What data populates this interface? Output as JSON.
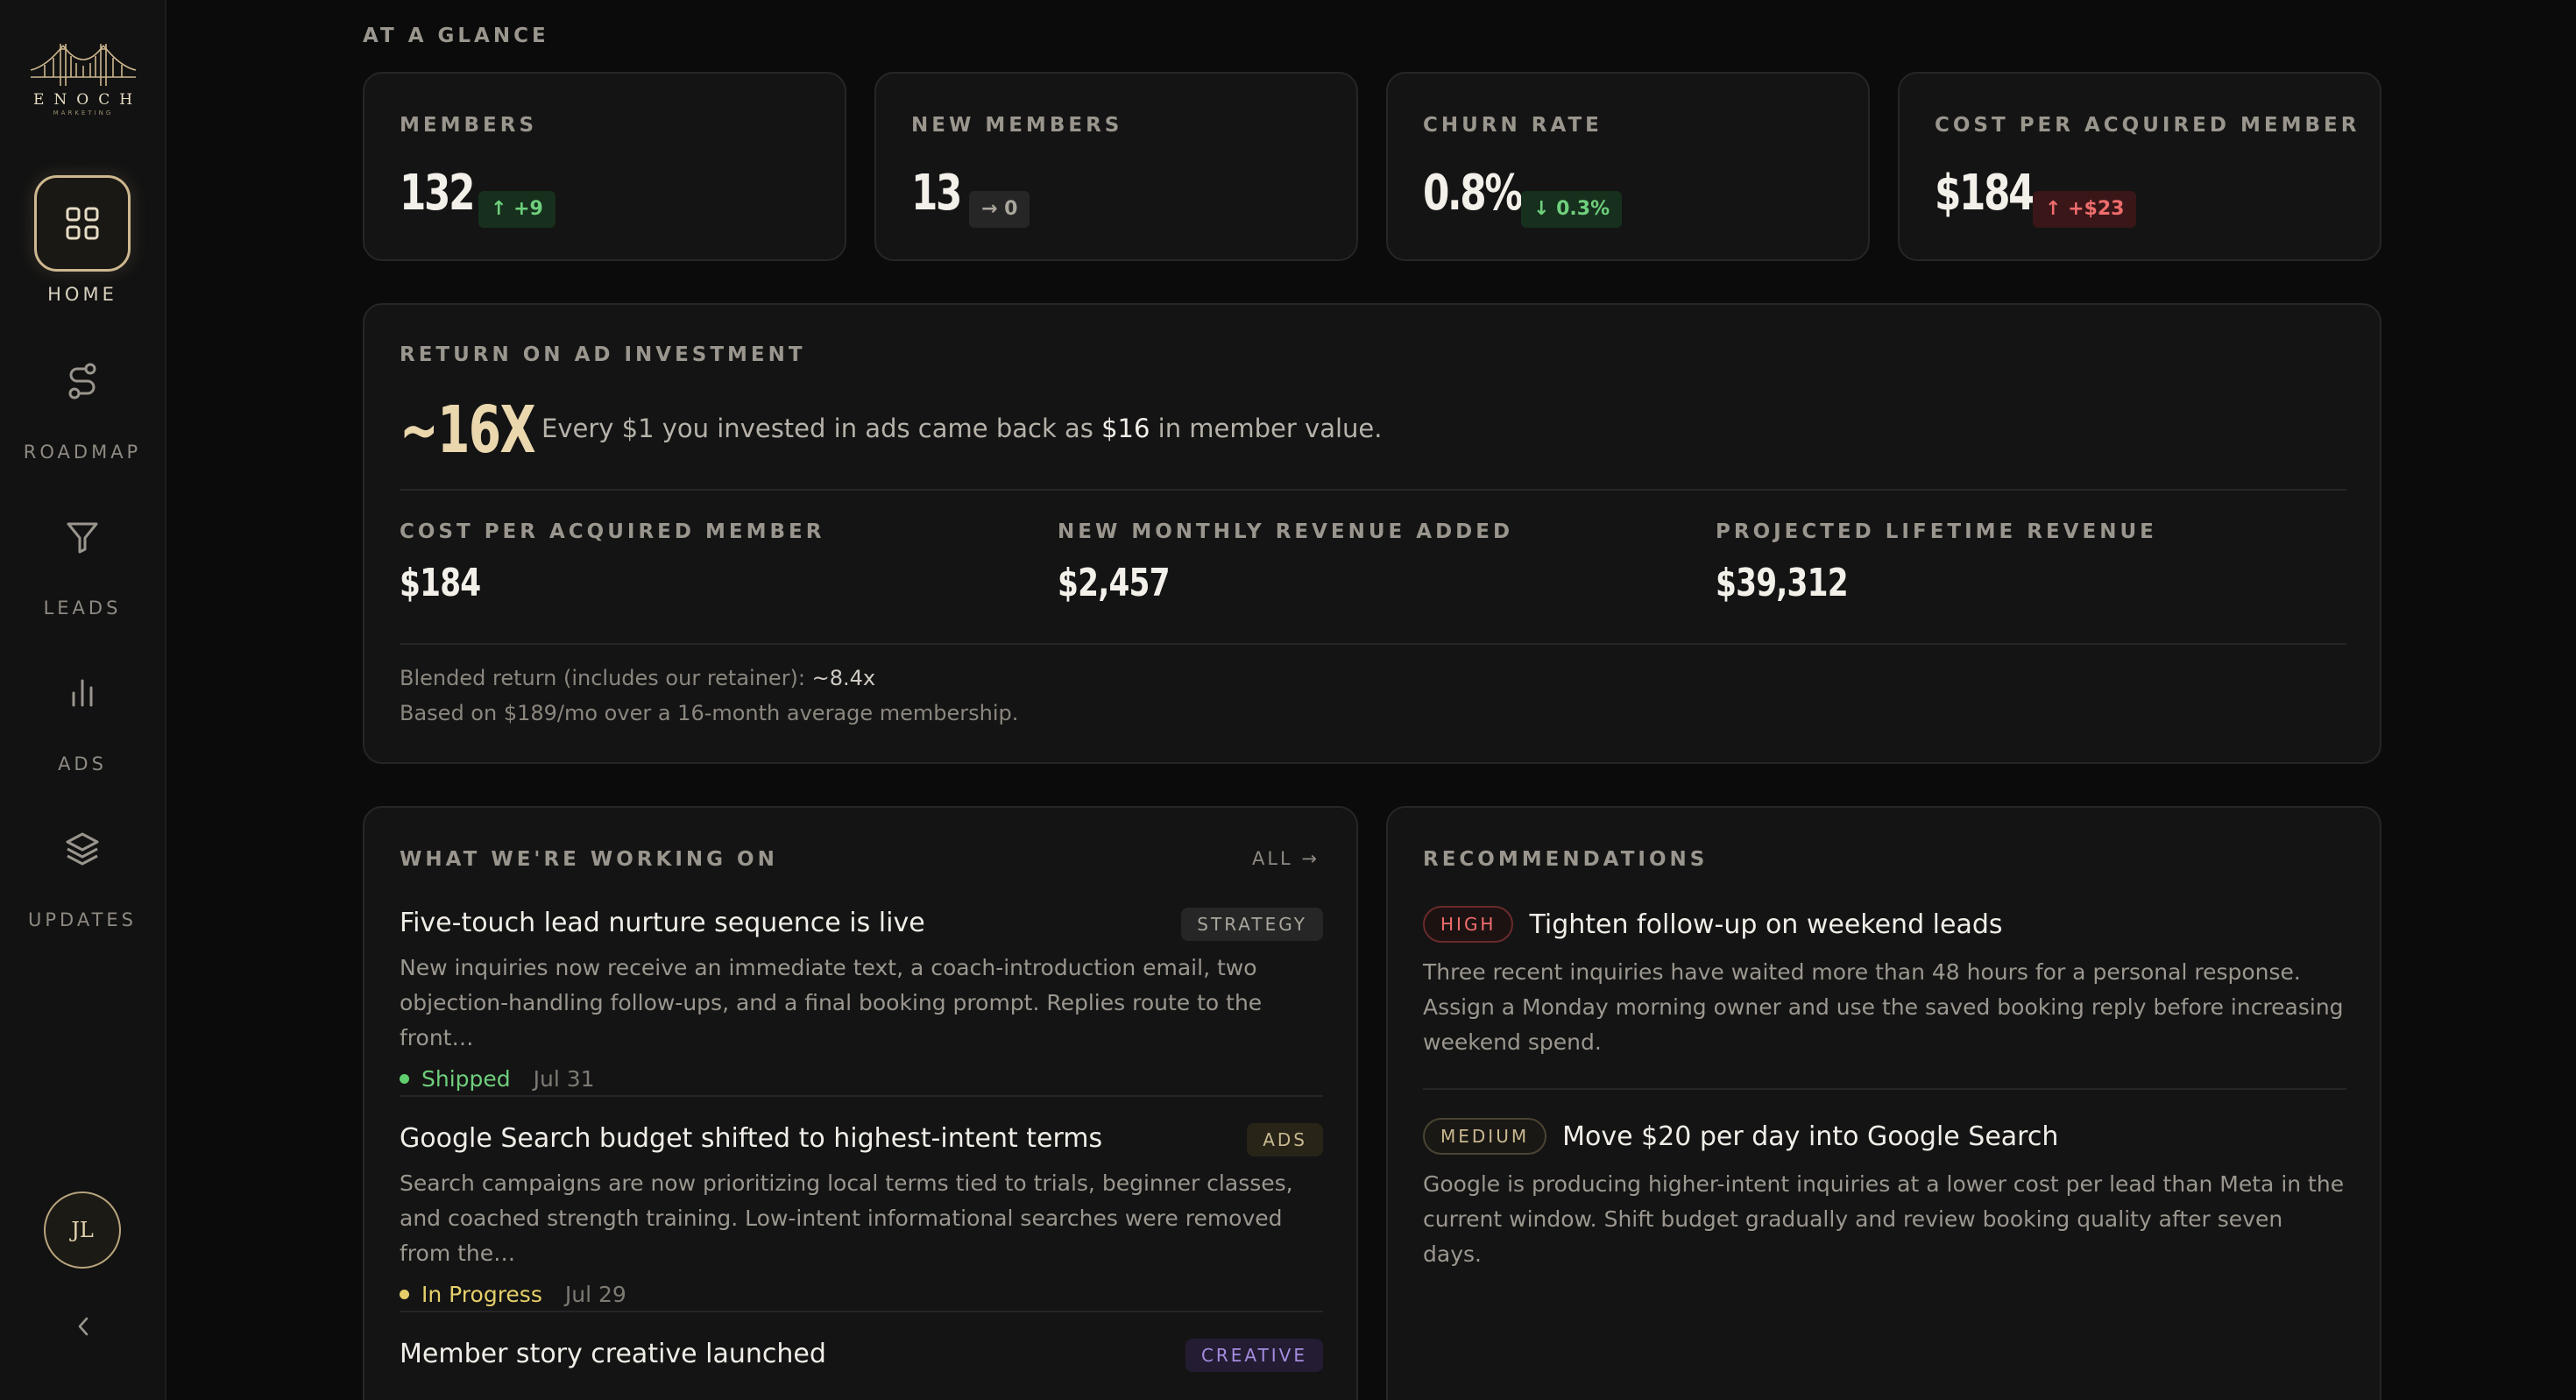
{
  "brand": {
    "name": "ENOCH",
    "subtitle": "MARKETING"
  },
  "sidebar": {
    "items": [
      {
        "label": "HOME",
        "icon": "grid-icon",
        "active": true
      },
      {
        "label": "ROADMAP",
        "icon": "route-icon",
        "active": false
      },
      {
        "label": "LEADS",
        "icon": "funnel-icon",
        "active": false
      },
      {
        "label": "ADS",
        "icon": "bar-chart-icon",
        "active": false
      },
      {
        "label": "UPDATES",
        "icon": "layers-icon",
        "active": false
      }
    ],
    "avatar_initials": "JL",
    "collapse_icon": "chevron-left-icon"
  },
  "glance": {
    "title": "AT A GLANCE",
    "stats": [
      {
        "label": "MEMBERS",
        "value": "132",
        "delta": "↑ +9",
        "trend": "up-good"
      },
      {
        "label": "NEW MEMBERS",
        "value": "13",
        "delta": "→ 0",
        "trend": "flat"
      },
      {
        "label": "CHURN RATE",
        "value": "0.8%",
        "delta": "↓ 0.3%",
        "trend": "down-good"
      },
      {
        "label": "COST PER ACQUIRED MEMBER",
        "value": "$184",
        "delta": "↑ +$23",
        "trend": "up-bad"
      }
    ]
  },
  "roi": {
    "title": "RETURN ON AD INVESTMENT",
    "multiplier": "~16X",
    "sentence_before": "Every $1 you invested in ads came back as ",
    "sentence_highlight": "$16",
    "sentence_after": " in member value.",
    "metrics": [
      {
        "label": "COST PER ACQUIRED MEMBER",
        "value": "$184"
      },
      {
        "label": "NEW MONTHLY REVENUE ADDED",
        "value": "$2,457"
      },
      {
        "label": "PROJECTED LIFETIME REVENUE",
        "value": "$39,312"
      }
    ],
    "note1_text": "Blended return (includes our retainer): ",
    "note1_value": "~8.4x",
    "note2": "Based on $189/mo over a 16-month average membership."
  },
  "work": {
    "title": "WHAT WE'RE WORKING ON",
    "all_link": "ALL →",
    "items": [
      {
        "title": "Five-touch lead nurture sequence is live",
        "tag": "STRATEGY",
        "desc": "New inquiries now receive an immediate text, a coach-introduction email, two objection-handling follow-ups, and a final booking prompt. Replies route to the front…",
        "status": "Shipped",
        "date": "Jul 31"
      },
      {
        "title": "Google Search budget shifted to highest-intent terms",
        "tag": "ADS",
        "desc": "Search campaigns are now prioritizing local terms tied to trials, beginner classes, and coached strength training. Low-intent informational searches were removed from the…",
        "status": "In Progress",
        "date": "Jul 29"
      },
      {
        "title": "Member story creative launched",
        "tag": "CREATIVE"
      }
    ]
  },
  "recs": {
    "title": "RECOMMENDATIONS",
    "items": [
      {
        "priority": "HIGH",
        "title": "Tighten follow-up on weekend leads",
        "desc": "Three recent inquiries have waited more than 48 hours for a personal response. Assign a Monday morning owner and use the saved booking reply before increasing weekend spend."
      },
      {
        "priority": "MEDIUM",
        "title": "Move $20 per day into Google Search",
        "desc": "Google is producing higher-intent inquiries at a lower cost per lead than Meta in the current window. Shift budget gradually and review booking quality after seven days."
      }
    ]
  }
}
